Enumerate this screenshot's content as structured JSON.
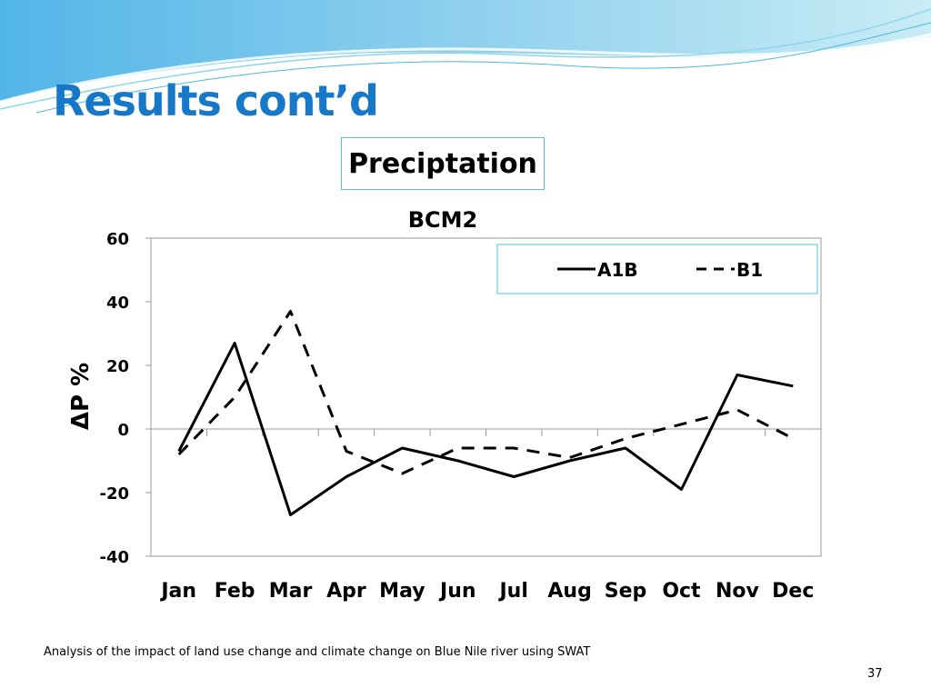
{
  "slide": {
    "title": "Results cont’d",
    "subtitle": "Preciptation",
    "footer": "Analysis of the impact of land use change and climate change on Blue Nile river using SWAT",
    "page_number": "37"
  },
  "colors": {
    "title": "#1878c8",
    "accent_border": "#4fc3d8",
    "series_line": "#000000"
  },
  "chart_data": {
    "type": "line",
    "title": "BCM2",
    "ylabel": "ΔP %",
    "xlabel": "",
    "categories": [
      "Jan",
      "Feb",
      "Mar",
      "Apr",
      "May",
      "Jun",
      "Jul",
      "Aug",
      "Sep",
      "Oct",
      "Nov",
      "Dec"
    ],
    "series": [
      {
        "name": "A1B",
        "style": "solid",
        "values": [
          -7,
          27,
          -27,
          -15,
          -6,
          -10,
          -15,
          -10,
          -6,
          -19,
          17,
          13.5
        ]
      },
      {
        "name": "B1",
        "style": "dashed",
        "values": [
          -8,
          10,
          37,
          -7,
          -14,
          -6,
          -6,
          -9,
          -3,
          1.5,
          6,
          -3
        ]
      }
    ],
    "ylim": [
      -40,
      60
    ],
    "yticks": [
      -40,
      -20,
      0,
      20,
      40,
      60
    ],
    "grid": false,
    "legend": "top-right"
  }
}
